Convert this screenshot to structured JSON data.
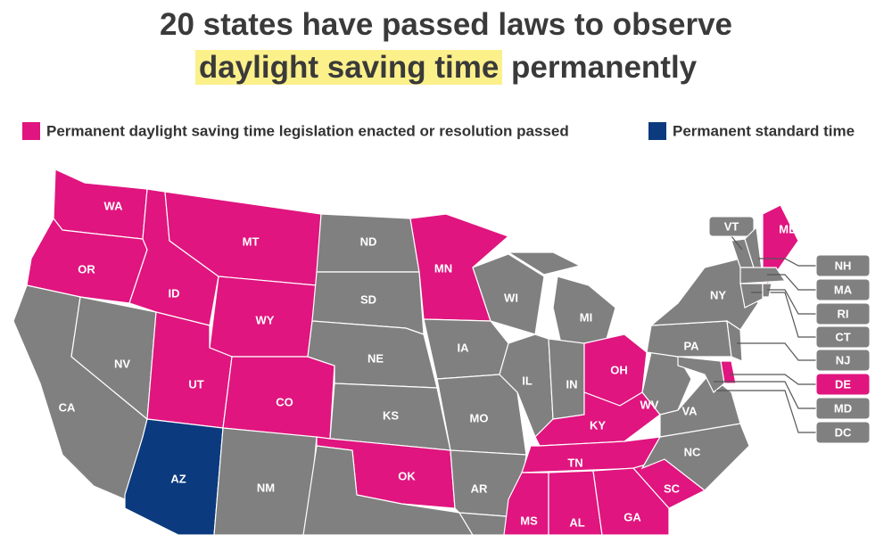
{
  "title": {
    "line1": "20 states have passed laws to observe",
    "highlight": "daylight saving time",
    "rest": "permanently"
  },
  "legend": [
    {
      "label": "Permanent daylight saving time legislation enacted or resolution passed",
      "color": "#e0157f"
    },
    {
      "label": "Permanent standard time",
      "color": "#0b3a7e"
    }
  ],
  "states": [
    {
      "label": "WA",
      "color": "#e0157f"
    },
    {
      "label": "OR",
      "color": "#e0157f"
    },
    {
      "label": "CA",
      "color": "#808080"
    },
    {
      "label": "NV",
      "color": "#808080"
    },
    {
      "label": "ID",
      "color": "#e0157f"
    },
    {
      "label": "MT",
      "color": "#e0157f"
    },
    {
      "label": "WY",
      "color": "#e0157f"
    },
    {
      "label": "UT",
      "color": "#e0157f"
    },
    {
      "label": "CO",
      "color": "#e0157f"
    },
    {
      "label": "AZ",
      "color": "#0b3a7e"
    },
    {
      "label": "NM",
      "color": "#808080"
    },
    {
      "label": "ND",
      "color": "#808080"
    },
    {
      "label": "SD",
      "color": "#808080"
    },
    {
      "label": "NE",
      "color": "#808080"
    },
    {
      "label": "KS",
      "color": "#808080"
    },
    {
      "label": "OK",
      "color": "#e0157f"
    },
    {
      "color": "#808080"
    },
    {
      "label": "MN",
      "color": "#e0157f"
    },
    {
      "label": "IA",
      "color": "#808080"
    },
    {
      "label": "MO",
      "color": "#808080"
    },
    {
      "label": "AR",
      "color": "#808080"
    },
    {
      "color": "#808080"
    },
    {
      "label": "WI",
      "color": "#808080"
    },
    {
      "label": "IL",
      "color": "#808080"
    },
    {
      "label": "MI",
      "color": "#808080"
    },
    {
      "label": "IN",
      "color": "#808080"
    },
    {
      "label": "OH",
      "color": "#e0157f"
    },
    {
      "label": "KY",
      "color": "#e0157f"
    },
    {
      "label": "TN",
      "color": "#e0157f"
    },
    {
      "label": "MS",
      "color": "#e0157f"
    },
    {
      "label": "AL",
      "color": "#e0157f"
    },
    {
      "label": "GA",
      "color": "#e0157f"
    },
    {
      "label": "SC",
      "color": "#e0157f"
    },
    {
      "label": "NC",
      "color": "#808080"
    },
    {
      "label": "VA",
      "color": "#808080"
    },
    {
      "label": "WV",
      "color": "#808080"
    },
    {
      "label": "PA",
      "color": "#808080"
    },
    {
      "label": "NY",
      "color": "#808080"
    },
    {
      "label": "ME",
      "color": "#e0157f"
    },
    {
      "label": "VT",
      "color": "#808080"
    },
    {
      "label": "NH",
      "color": "#808080"
    },
    {
      "label": "MA",
      "color": "#808080"
    },
    {
      "label": "CT",
      "color": "#808080"
    },
    {
      "label": "RI",
      "color": "#808080"
    },
    {
      "label": "NJ",
      "color": "#808080"
    },
    {
      "label": "DE",
      "color": "#e0157f"
    },
    {
      "label": "MD",
      "color": "#808080"
    },
    {
      "label": "DC",
      "color": "#808080"
    }
  ]
}
